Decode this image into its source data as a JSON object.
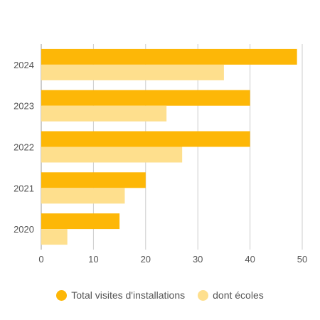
{
  "chart_data": {
    "type": "bar",
    "orientation": "horizontal",
    "categories": [
      "2024",
      "2023",
      "2022",
      "2021",
      "2020"
    ],
    "series": [
      {
        "name": "Total visites d'installations",
        "color": "#FDB707",
        "values": [
          49,
          40,
          40,
          20,
          15
        ]
      },
      {
        "name": "dont écoles",
        "color": "#FEDF8D",
        "values": [
          35,
          24,
          27,
          16,
          5
        ]
      }
    ],
    "xticks": [
      0,
      10,
      20,
      30,
      40,
      50
    ],
    "xlim": [
      0,
      50
    ],
    "grid": "vertical",
    "legend_position": "bottom"
  },
  "legend": {
    "items": [
      {
        "label": "Total visites d'installations",
        "color": "#FDB707"
      },
      {
        "label": "dont écoles",
        "color": "#FEDF8D"
      }
    ]
  }
}
